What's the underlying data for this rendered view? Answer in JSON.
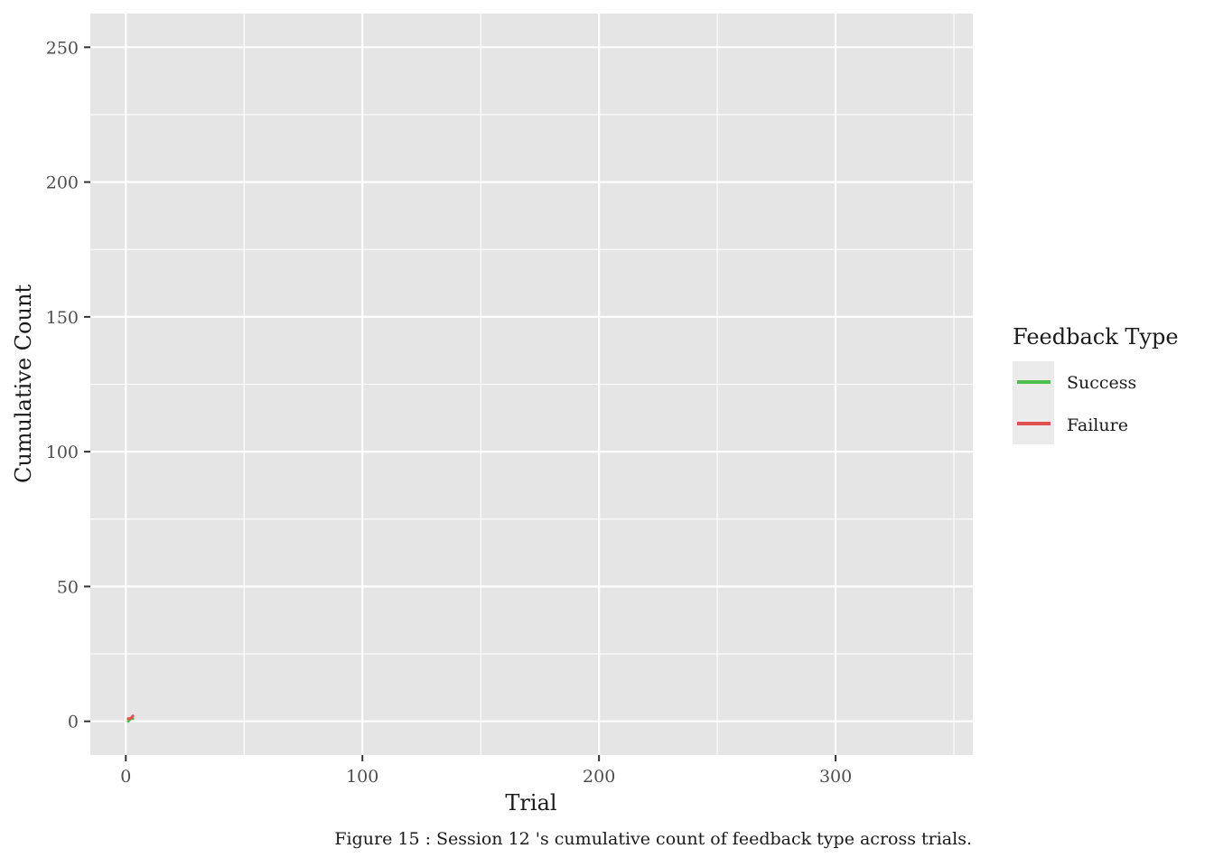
{
  "chart_data": {
    "type": "line",
    "xlabel": "Trial",
    "ylabel": "Cumulative Count",
    "xlim": [
      -15,
      358
    ],
    "ylim": [
      -12.5,
      262.5
    ],
    "x_ticks": [
      0,
      100,
      200,
      300
    ],
    "x_tick_labels": [
      "0",
      "100",
      "200",
      "300"
    ],
    "x_minor_ticks": [
      50,
      150,
      250,
      350
    ],
    "y_ticks": [
      0,
      50,
      100,
      150,
      200,
      250
    ],
    "y_tick_labels": [
      "0",
      "50",
      "100",
      "150",
      "200",
      "250"
    ],
    "y_minor_ticks": [
      25,
      75,
      125,
      175,
      225
    ],
    "grid": true,
    "legend_position": "right",
    "legend": {
      "title": "Feedback Type",
      "entries": [
        {
          "label": "Success",
          "color": "#4dbf4d"
        },
        {
          "label": "Failure",
          "color": "#e05050"
        }
      ]
    },
    "series": [
      {
        "name": "Success",
        "color": "#4dbf4d",
        "x": [
          1,
          2,
          3
        ],
        "y": [
          0,
          1,
          1
        ]
      },
      {
        "name": "Failure",
        "color": "#e05050",
        "x": [
          1,
          2,
          3
        ],
        "y": [
          1,
          1,
          2
        ]
      }
    ],
    "caption": "Figure 15 : Session 12 's cumulative count of feedback type across trials."
  },
  "colors": {
    "panel": "#e5e5e5",
    "grid": "#ffffff"
  }
}
